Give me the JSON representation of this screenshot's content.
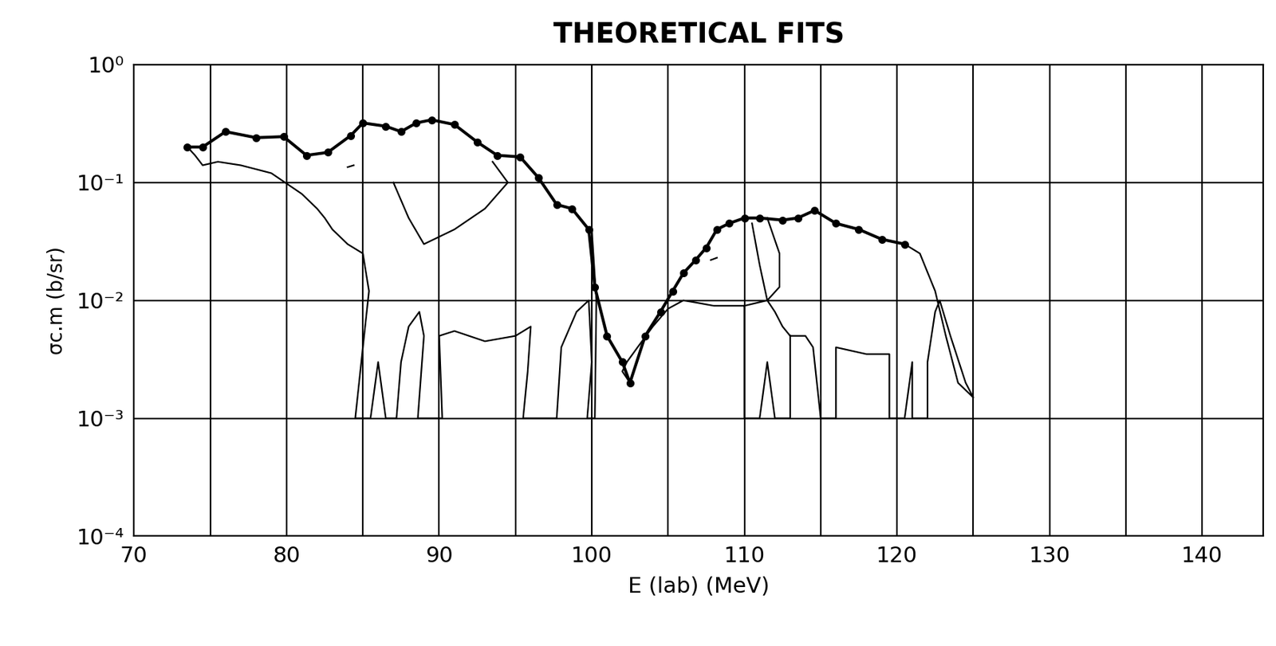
{
  "chart_data": {
    "type": "line",
    "title": "THEORETICAL FITS",
    "x_label": "E (lab) (MeV)",
    "y_label": "σc.m (b/sr)",
    "log": "y",
    "grid": true,
    "xlim": [
      70,
      144
    ],
    "ylim": [
      0.0001,
      1
    ],
    "xticks": [
      70,
      {
        "value": 75,
        "label": null
      },
      80,
      {
        "value": 85,
        "label": null
      },
      90,
      {
        "value": 95,
        "label": null
      },
      100,
      {
        "value": 105,
        "label": null
      },
      110,
      {
        "value": 115,
        "label": null
      },
      120,
      {
        "value": 125,
        "label": null
      },
      130,
      {
        "value": 135,
        "label": null
      },
      140
    ],
    "yticks": [
      {
        "value": 0.0001,
        "label": "10⁻⁴"
      },
      {
        "value": 0.001,
        "label": "10⁻³"
      },
      {
        "value": 0.01,
        "label": "10⁻²"
      },
      {
        "value": 0.1,
        "label": "10⁻¹"
      },
      {
        "value": 1,
        "label": "10⁰"
      }
    ],
    "series": [
      {
        "color": "#000000",
        "marker": "o",
        "line_style": "solid",
        "x": [
          73.5,
          74.5,
          76,
          78,
          79.8,
          81.3,
          82.7,
          84.2,
          85,
          86.5,
          87.5,
          88.5,
          89.5,
          91,
          92.5,
          93.8,
          95.3,
          96.5,
          97.7,
          98.7,
          99.8,
          100.2,
          101,
          102,
          102.5,
          103.5,
          104.5,
          105.3,
          106,
          106.8,
          107.5,
          108.2,
          109,
          110,
          111,
          112.5,
          113.5,
          114.6,
          116,
          117.5,
          119,
          120.5
        ],
        "values": [
          0.2,
          0.2,
          0.27,
          0.24,
          0.245,
          0.17,
          0.18,
          0.25,
          0.32,
          0.3,
          0.27,
          0.32,
          0.34,
          0.31,
          0.22,
          0.17,
          0.165,
          0.11,
          0.065,
          0.06,
          0.04,
          0.013,
          0.005,
          0.003,
          0.002,
          0.005,
          0.008,
          0.012,
          0.017,
          0.022,
          0.028,
          0.04,
          0.045,
          0.05,
          0.05,
          0.048,
          0.05,
          0.058,
          0.045,
          0.04,
          0.033,
          0.03
        ]
      },
      {
        "color": "#000000",
        "marker": "none",
        "line_style": "solid",
        "x": [
          73.5,
          74,
          74.5,
          75.5,
          77,
          79,
          81,
          82,
          82.5,
          83,
          84,
          85,
          85.4,
          85,
          84.5,
          85.5,
          86,
          86.5,
          87.2,
          87.5,
          88,
          88.7,
          89,
          88.6,
          90.2,
          90,
          91,
          93,
          95,
          96,
          95.8,
          95.5,
          97.7,
          98,
          99,
          99.8,
          100,
          99.7,
          100.2,
          100.3,
          100,
          null,
          87,
          88,
          89,
          91,
          93,
          94.5,
          93.5,
          null,
          84,
          84.4
        ],
        "values": [
          0.2,
          0.17,
          0.14,
          0.15,
          0.14,
          0.12,
          0.08,
          0.06,
          0.05,
          0.04,
          0.03,
          0.025,
          0.012,
          0.004,
          0.001,
          0.001,
          0.003,
          0.001,
          0.001,
          0.003,
          0.006,
          0.008,
          0.005,
          0.001,
          0.001,
          0.005,
          0.0055,
          0.0045,
          0.005,
          0.006,
          0.0025,
          0.001,
          0.001,
          0.004,
          0.008,
          0.01,
          0.003,
          0.001,
          0.001,
          0.01,
          0.04,
          null,
          0.1,
          0.05,
          0.03,
          0.04,
          0.06,
          0.1,
          0.15,
          null,
          0.135,
          0.14
        ]
      },
      {
        "color": "#000000",
        "marker": "none",
        "line_style": "solid",
        "x": [
          102.5,
          102,
          102.3,
          103,
          104,
          105,
          106,
          107,
          108,
          110,
          111.5,
          112,
          112.5,
          113,
          114,
          114.5,
          115,
          116,
          116,
          118,
          119.5,
          119.5,
          120.5,
          121,
          121,
          122,
          122,
          122.5,
          122.8,
          123.5,
          124.5,
          125,
          124,
          123.2,
          122.5,
          121.5,
          120.5,
          null,
          110,
          110,
          111,
          111.5,
          112,
          113,
          113,
          null,
          110.5,
          111,
          111.5,
          112.3,
          112.3,
          111.5,
          null,
          107.8,
          108.2
        ],
        "values": [
          0.002,
          0.0025,
          0.003,
          0.004,
          0.006,
          0.0085,
          0.01,
          0.0095,
          0.009,
          0.009,
          0.01,
          0.008,
          0.006,
          0.005,
          0.005,
          0.004,
          0.001,
          0.001,
          0.004,
          0.0035,
          0.0035,
          0.001,
          0.001,
          0.003,
          0.001,
          0.001,
          0.003,
          0.008,
          0.01,
          0.005,
          0.002,
          0.0015,
          0.002,
          0.005,
          0.012,
          0.025,
          0.03,
          null,
          0.009,
          0.001,
          0.001,
          0.003,
          0.001,
          0.001,
          0.005,
          null,
          0.045,
          0.02,
          0.01,
          0.013,
          0.025,
          0.05,
          null,
          0.022,
          0.023
        ]
      }
    ]
  }
}
